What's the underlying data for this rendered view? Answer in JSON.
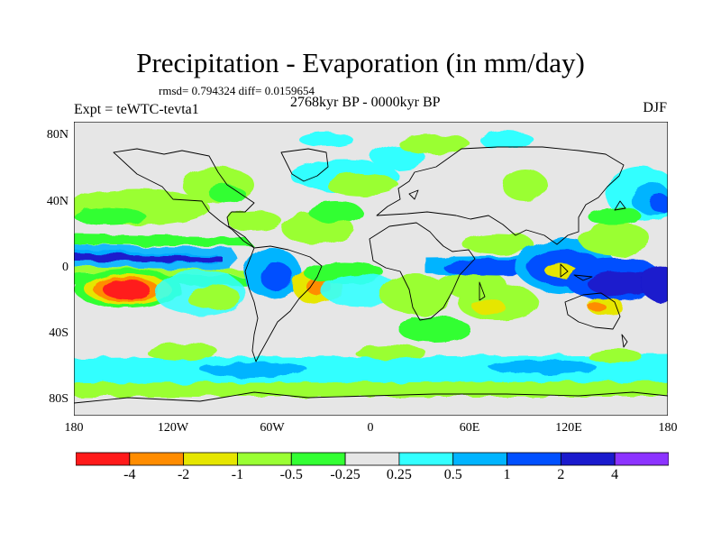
{
  "title": "Precipitation - Evaporation (in mm/day)",
  "stats": "rmsd= 0.794324 diff= 0.0159654",
  "period": "2768kyr BP - 0000kyr BP",
  "experiment": "Expt = teWTC-tevta1",
  "season": "DJF",
  "lat_ticks": [
    "80N",
    "40N",
    "0",
    "40S",
    "80S"
  ],
  "lon_ticks": [
    "180",
    "120W",
    "60W",
    "0",
    "60E",
    "120E",
    "180"
  ],
  "legend": {
    "labels": [
      "-4",
      "-2",
      "-1",
      "-0.5",
      "-0.25",
      "0.25",
      "0.5",
      "1",
      "2",
      "4"
    ],
    "colors": [
      "#ff1a1a",
      "#ff8c00",
      "#e6e600",
      "#9aff33",
      "#33ff33",
      "#e6e6e6",
      "#33ffff",
      "#00b4ff",
      "#0050ff",
      "#1a1acd",
      "#8c33ff"
    ]
  }
}
